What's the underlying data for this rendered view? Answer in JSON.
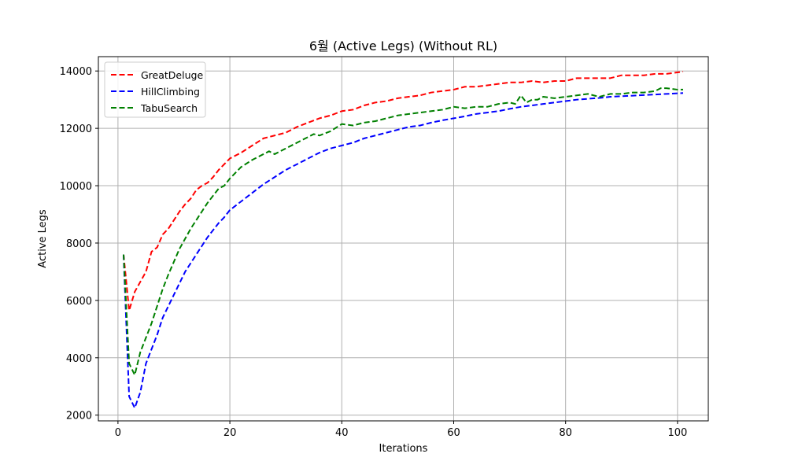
{
  "chart_data": {
    "type": "line",
    "title": "6월 (Active Legs) (Without RL)",
    "xlabel": "Iterations",
    "ylabel": "Active Legs",
    "xlim": [
      -3.5,
      105.5
    ],
    "ylim": [
      1800,
      14500
    ],
    "xticks": [
      0,
      20,
      40,
      60,
      80,
      100
    ],
    "yticks": [
      2000,
      4000,
      6000,
      8000,
      10000,
      12000,
      14000
    ],
    "grid": true,
    "legend_position": "top-left",
    "series": [
      {
        "name": "GreatDeluge",
        "color": "#ff0000",
        "x": [
          1,
          2,
          3,
          4,
          5,
          6,
          7,
          8,
          9,
          10,
          11,
          12,
          13,
          14,
          15,
          16,
          17,
          18,
          19,
          20,
          22,
          24,
          26,
          28,
          30,
          32,
          34,
          36,
          38,
          40,
          42,
          44,
          46,
          48,
          50,
          52,
          54,
          56,
          58,
          60,
          62,
          64,
          66,
          68,
          70,
          72,
          74,
          76,
          78,
          80,
          82,
          84,
          86,
          88,
          90,
          92,
          94,
          96,
          98,
          100,
          101
        ],
        "y": [
          7600,
          5650,
          6300,
          6650,
          7000,
          7700,
          7850,
          8300,
          8500,
          8800,
          9100,
          9350,
          9550,
          9850,
          10000,
          10100,
          10300,
          10550,
          10750,
          10950,
          11150,
          11400,
          11650,
          11750,
          11850,
          12050,
          12200,
          12350,
          12450,
          12600,
          12650,
          12800,
          12900,
          12950,
          13050,
          13100,
          13150,
          13250,
          13300,
          13350,
          13450,
          13450,
          13500,
          13550,
          13600,
          13600,
          13650,
          13600,
          13650,
          13650,
          13750,
          13750,
          13750,
          13750,
          13850,
          13850,
          13850,
          13900,
          13900,
          13950,
          13980
        ]
      },
      {
        "name": "HillClimbing",
        "color": "#0000ff",
        "x": [
          1,
          2,
          3,
          4,
          5,
          6,
          7,
          8,
          9,
          10,
          11,
          12,
          13,
          14,
          15,
          16,
          17,
          18,
          19,
          20,
          22,
          24,
          26,
          28,
          30,
          32,
          34,
          36,
          38,
          40,
          42,
          44,
          46,
          48,
          50,
          52,
          54,
          56,
          58,
          60,
          62,
          64,
          66,
          68,
          70,
          72,
          74,
          76,
          78,
          80,
          82,
          84,
          86,
          88,
          90,
          92,
          94,
          96,
          98,
          100,
          101
        ],
        "y": [
          7600,
          2650,
          2250,
          2800,
          3800,
          4300,
          4800,
          5400,
          5800,
          6200,
          6600,
          7000,
          7300,
          7600,
          7900,
          8200,
          8450,
          8700,
          8900,
          9150,
          9450,
          9750,
          10050,
          10300,
          10550,
          10750,
          10950,
          11150,
          11300,
          11400,
          11500,
          11650,
          11750,
          11850,
          11950,
          12050,
          12100,
          12200,
          12280,
          12350,
          12420,
          12500,
          12550,
          12600,
          12680,
          12750,
          12800,
          12850,
          12900,
          12950,
          13000,
          13030,
          13060,
          13100,
          13120,
          13140,
          13160,
          13180,
          13200,
          13220,
          13230
        ]
      },
      {
        "name": "TabuSearch",
        "color": "#008000",
        "x": [
          1,
          2,
          3,
          4,
          5,
          6,
          7,
          8,
          9,
          10,
          11,
          12,
          13,
          14,
          15,
          16,
          17,
          18,
          19,
          20,
          22,
          24,
          26,
          27,
          28,
          30,
          32,
          34,
          35,
          36,
          38,
          40,
          42,
          44,
          46,
          48,
          50,
          52,
          54,
          56,
          58,
          60,
          62,
          64,
          66,
          68,
          70,
          71,
          72,
          73,
          74,
          75,
          76,
          78,
          80,
          82,
          84,
          86,
          88,
          90,
          92,
          94,
          96,
          97,
          98,
          100,
          101
        ],
        "y": [
          7600,
          3800,
          3400,
          4200,
          4700,
          5200,
          5800,
          6400,
          6900,
          7350,
          7800,
          8150,
          8500,
          8800,
          9100,
          9400,
          9650,
          9900,
          10000,
          10250,
          10650,
          10900,
          11100,
          11200,
          11100,
          11300,
          11500,
          11700,
          11800,
          11750,
          11900,
          12150,
          12100,
          12200,
          12250,
          12350,
          12450,
          12500,
          12550,
          12600,
          12650,
          12750,
          12700,
          12750,
          12750,
          12850,
          12900,
          12850,
          13150,
          12900,
          13000,
          13000,
          13100,
          13050,
          13100,
          13150,
          13200,
          13100,
          13200,
          13200,
          13250,
          13250,
          13300,
          13400,
          13400,
          13350,
          13350
        ]
      }
    ]
  }
}
